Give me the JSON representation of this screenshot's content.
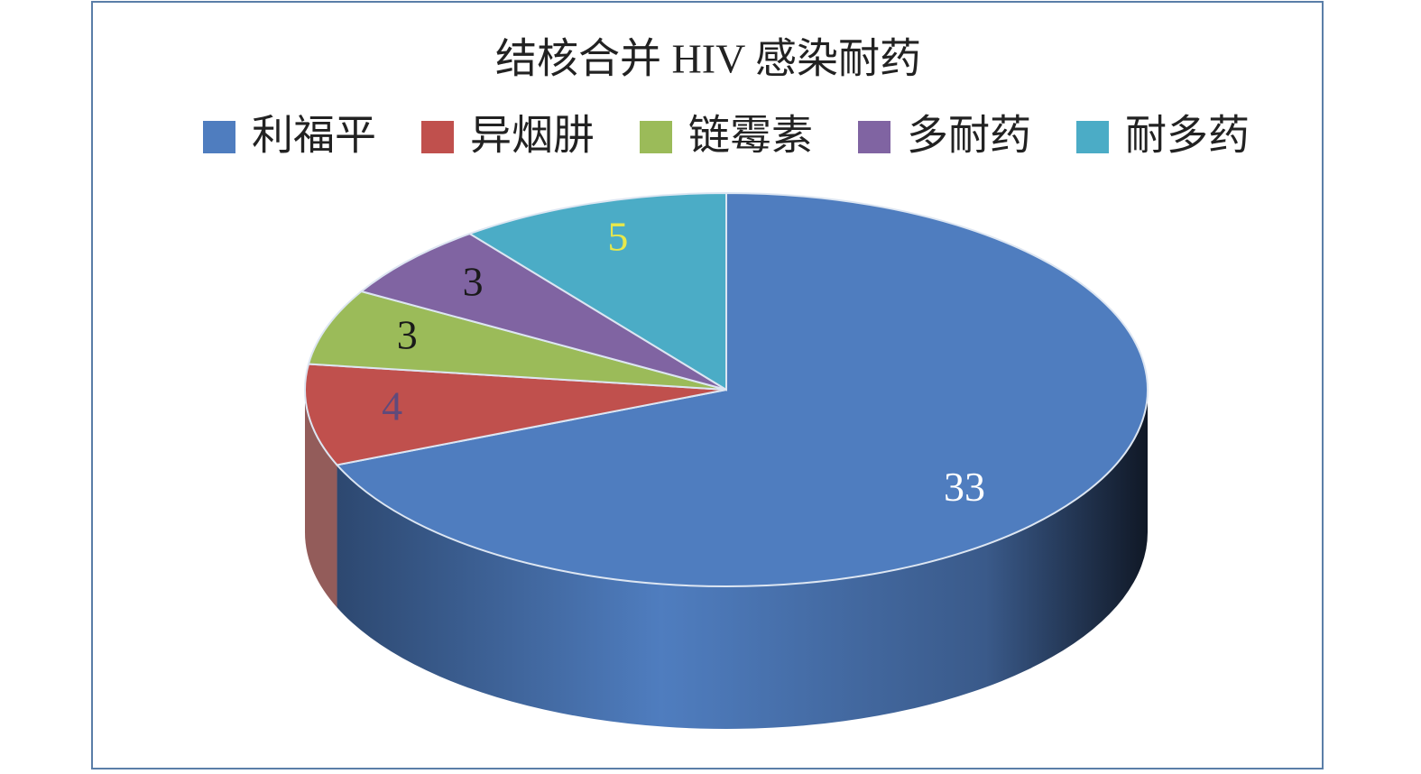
{
  "chart_data": {
    "type": "pie3d",
    "title": "结核合并 HIV 感染耐药",
    "categories": [
      "利福平",
      "异烟肼",
      "链霉素",
      "多耐药",
      "耐多药"
    ],
    "values": [
      33,
      4,
      3,
      3,
      5
    ],
    "colors": [
      "#4f7dbf",
      "#c0504d",
      "#9bbb59",
      "#8064a2",
      "#4bacc6"
    ],
    "label_colors": [
      "#ffffff",
      "#604a7b",
      "#1a1a1a",
      "#1a1a1a",
      "#e8e84a"
    ],
    "legend": "top"
  }
}
